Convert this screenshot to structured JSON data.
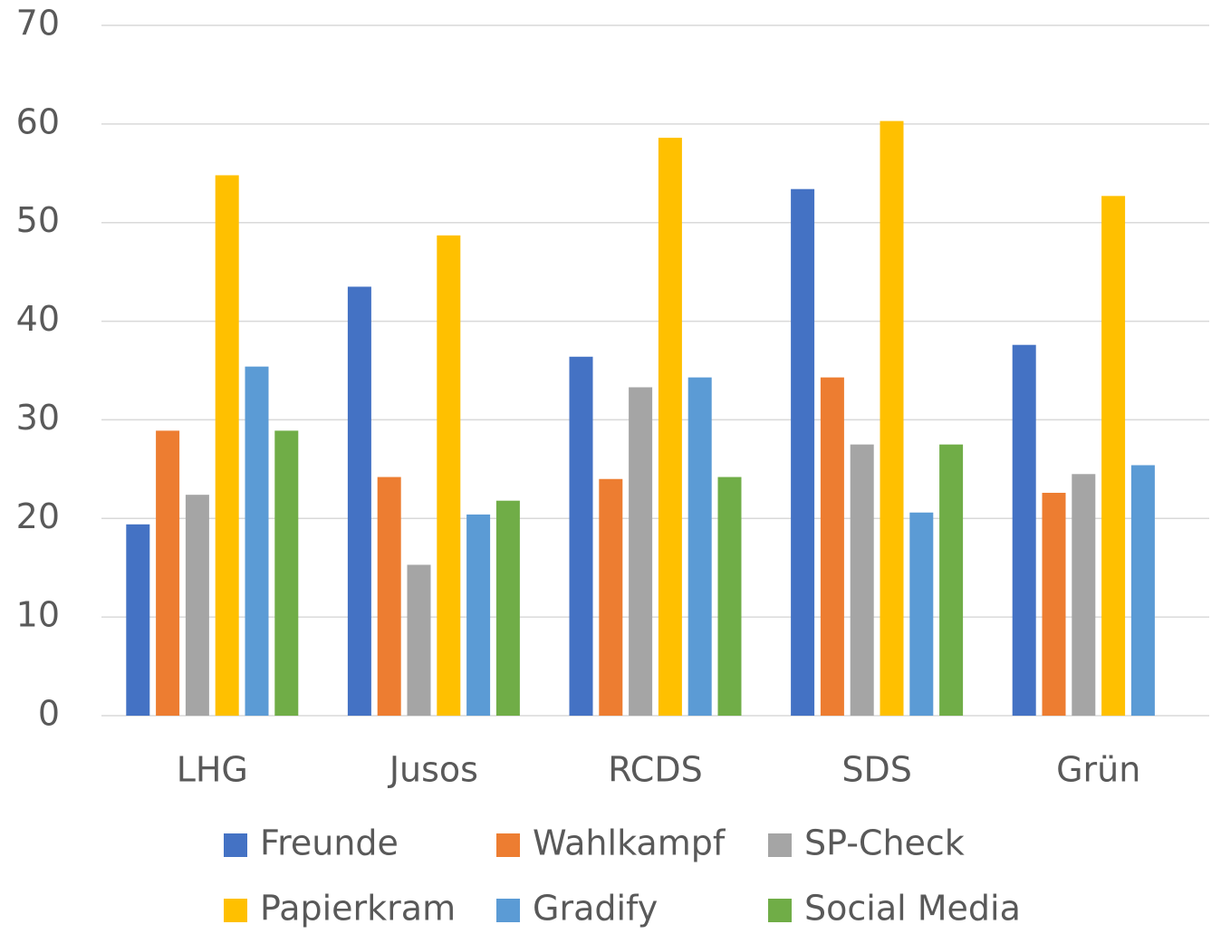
{
  "chart_data": {
    "type": "bar",
    "categories": [
      "LHG",
      "Jusos",
      "RCDS",
      "SDS",
      "Grün"
    ],
    "series": [
      {
        "name": "Freunde",
        "color": "#4472c4",
        "values": [
          19.4,
          43.5,
          36.4,
          53.4,
          37.6
        ]
      },
      {
        "name": "Wahlkampf",
        "color": "#ed7d31",
        "values": [
          28.9,
          24.2,
          24.0,
          34.3,
          22.6
        ]
      },
      {
        "name": "SP-Check",
        "color": "#a5a5a5",
        "values": [
          22.4,
          15.3,
          33.3,
          27.5,
          24.5
        ]
      },
      {
        "name": "Papierkram",
        "color": "#ffc000",
        "values": [
          54.8,
          48.7,
          58.6,
          60.3,
          52.7
        ]
      },
      {
        "name": "Gradify",
        "color": "#5b9bd5",
        "values": [
          35.4,
          20.4,
          34.3,
          20.6,
          25.4
        ]
      },
      {
        "name": "Social Media",
        "color": "#70ad47",
        "values": [
          28.9,
          21.8,
          24.2,
          27.5,
          null
        ]
      }
    ],
    "ylim": [
      0,
      70
    ],
    "yticks": [
      0,
      10,
      20,
      30,
      40,
      50,
      60,
      70
    ],
    "grid": true,
    "legend": "bottom"
  }
}
